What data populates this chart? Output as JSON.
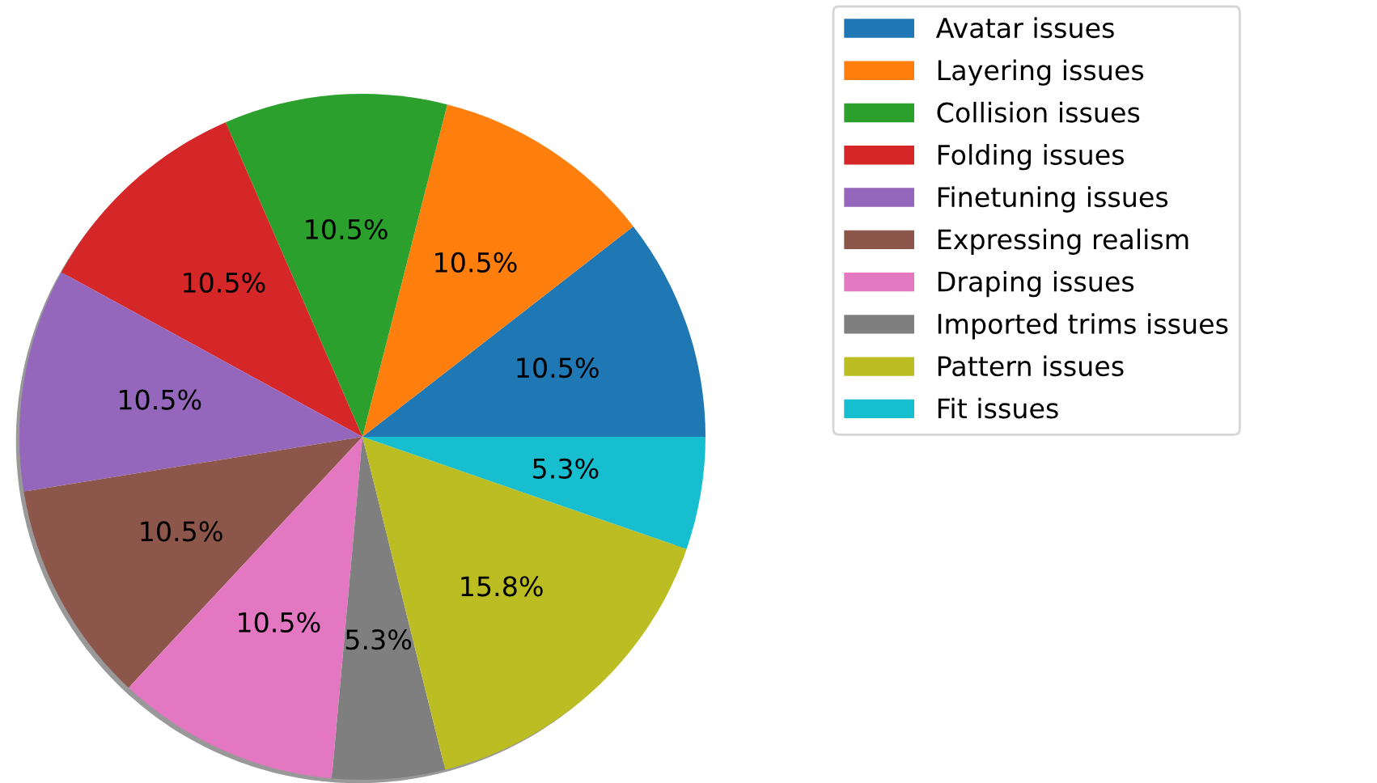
{
  "chart_data": {
    "type": "pie",
    "categories": [
      "Avatar issues",
      "Layering issues",
      "Collision issues",
      "Folding issues",
      "Finetuning issues",
      "Expressing realism",
      "Draping issues",
      "Imported trims issues",
      "Pattern issues",
      "Fit issues"
    ],
    "values": [
      10.5,
      10.5,
      10.5,
      10.5,
      10.5,
      10.5,
      10.5,
      5.3,
      15.8,
      5.3
    ],
    "value_labels": [
      "10.5%",
      "10.5%",
      "10.5%",
      "10.5%",
      "10.5%",
      "10.5%",
      "10.5%",
      "5.3%",
      "15.8%",
      "5.3%"
    ],
    "colors": [
      "#1f77b4",
      "#ff7f0e",
      "#2ca02c",
      "#d62728",
      "#9467bd",
      "#8c564b",
      "#e377c2",
      "#7f7f7f",
      "#bcbd22",
      "#17becf"
    ],
    "legend": "top right"
  }
}
